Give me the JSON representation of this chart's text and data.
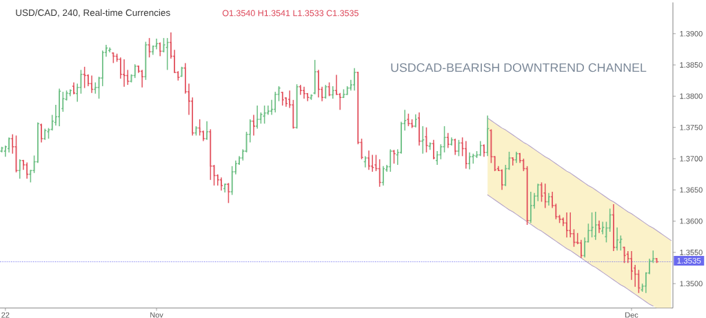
{
  "chart_data": {
    "type": "candlestick",
    "title": "USD/CAD, 240, Real-time Currencies",
    "subtitle": "O1.3540 H1.3541 L1.3533 C1.3535",
    "annotations": [
      "USDCAD-BEARISH DOWNTREND CHANNEL"
    ],
    "categories": [
      null,
      "22",
      null,
      null,
      null,
      null,
      null,
      null,
      null,
      null,
      null,
      null,
      null,
      null,
      null,
      null,
      null,
      null,
      null,
      null,
      null,
      null,
      null,
      null,
      null,
      null,
      null,
      null,
      null,
      null,
      null,
      null,
      null,
      null,
      null,
      null,
      null,
      null,
      null,
      null,
      null,
      null,
      null,
      "Nov",
      null,
      null,
      null,
      null,
      null,
      null,
      null,
      null,
      null,
      null,
      null,
      null,
      null,
      null,
      null,
      null,
      null,
      null,
      null,
      null,
      null,
      null,
      null,
      null,
      null,
      null,
      null,
      null,
      null,
      null,
      null,
      null,
      null,
      null,
      null,
      null,
      null,
      null,
      null,
      null,
      null,
      null,
      null,
      null,
      null,
      null,
      null,
      null,
      null,
      null,
      null,
      null,
      null,
      null,
      null,
      null,
      null,
      null,
      null,
      null,
      null,
      null,
      null,
      null,
      null,
      null,
      null,
      null,
      null,
      null,
      null,
      null,
      null,
      null,
      null,
      null,
      null,
      null,
      null,
      null,
      null,
      null,
      null,
      null,
      null,
      null,
      null,
      null,
      null,
      null,
      null,
      null,
      null,
      null,
      null,
      null,
      null,
      null,
      null,
      null,
      null,
      null,
      null,
      null,
      null,
      null,
      null,
      null,
      null,
      null,
      null,
      null,
      null,
      null,
      null,
      null,
      null,
      null,
      null,
      null,
      null,
      null,
      null,
      null,
      null,
      null,
      null,
      null,
      null,
      null,
      null,
      "Dec",
      null,
      null,
      null,
      null,
      null,
      null,
      null,
      null,
      null,
      null,
      null
    ],
    "ohlc": [
      [
        1.3712,
        1.3719,
        1.371,
        1.3717
      ],
      [
        1.3712,
        1.3721,
        1.3703,
        1.3719
      ],
      [
        1.3716,
        1.3734,
        1.371,
        1.3732
      ],
      [
        1.3732,
        1.3739,
        1.3708,
        1.3719
      ],
      [
        1.3719,
        1.3737,
        1.3678,
        1.3681
      ],
      [
        1.3681,
        1.3699,
        1.3668,
        1.3697
      ],
      [
        1.3697,
        1.3698,
        1.3682,
        1.369
      ],
      [
        1.369,
        1.3694,
        1.3668,
        1.3675
      ],
      [
        1.3675,
        1.3682,
        1.3662,
        1.3681
      ],
      [
        1.3681,
        1.3705,
        1.3677,
        1.3695
      ],
      [
        1.3695,
        1.3758,
        1.3693,
        1.3756
      ],
      [
        1.3754,
        1.3756,
        1.3726,
        1.3732
      ],
      [
        1.3732,
        1.3748,
        1.373,
        1.3745
      ],
      [
        1.3743,
        1.3749,
        1.3732,
        1.3746
      ],
      [
        1.3747,
        1.377,
        1.3745,
        1.376
      ],
      [
        1.3758,
        1.3786,
        1.3753,
        1.3767
      ],
      [
        1.3767,
        1.3812,
        1.3752,
        1.3808
      ],
      [
        1.378,
        1.3807,
        1.3775,
        1.3796
      ],
      [
        1.3795,
        1.3809,
        1.3793,
        1.3805
      ],
      [
        1.3804,
        1.3811,
        1.38,
        1.3809
      ],
      [
        1.3816,
        1.3822,
        1.3803,
        1.3805
      ],
      [
        1.3804,
        1.382,
        1.3791,
        1.3814
      ],
      [
        1.3814,
        1.3842,
        1.3804,
        1.3835
      ],
      [
        1.3835,
        1.3847,
        1.3813,
        1.3833
      ],
      [
        1.3833,
        1.3835,
        1.3816,
        1.382
      ],
      [
        1.382,
        1.3833,
        1.3805,
        1.3811
      ],
      [
        1.3811,
        1.3822,
        1.3804,
        1.3814
      ],
      [
        1.3814,
        1.3831,
        1.3796,
        1.3829
      ],
      [
        1.3829,
        1.3873,
        1.3816,
        1.387
      ],
      [
        1.387,
        1.3882,
        1.3863,
        1.3877
      ],
      [
        1.3873,
        1.3878,
        1.387,
        1.3875
      ],
      [
        1.3869,
        1.387,
        1.3853,
        1.3864
      ],
      [
        1.3864,
        1.3868,
        1.3855,
        1.3859
      ],
      [
        1.3859,
        1.3862,
        1.3828,
        1.3835
      ],
      [
        1.3835,
        1.3859,
        1.3815,
        1.3833
      ],
      [
        1.3833,
        1.3842,
        1.3818,
        1.3824
      ],
      [
        1.3824,
        1.3835,
        1.3822,
        1.3833
      ],
      [
        1.3833,
        1.3851,
        1.3829,
        1.3848
      ],
      [
        1.3848,
        1.3849,
        1.3837,
        1.384
      ],
      [
        1.384,
        1.3842,
        1.3814,
        1.3831
      ],
      [
        1.3831,
        1.3887,
        1.3826,
        1.3882
      ],
      [
        1.3882,
        1.3893,
        1.3862,
        1.3871
      ],
      [
        1.3871,
        1.3881,
        1.3866,
        1.388
      ],
      [
        1.388,
        1.3892,
        1.3875,
        1.3884
      ],
      [
        1.3884,
        1.3886,
        1.3864,
        1.3872
      ],
      [
        1.3872,
        1.3893,
        1.387,
        1.3882
      ],
      [
        1.3878,
        1.3893,
        1.3842,
        1.3886
      ],
      [
        1.3886,
        1.3902,
        1.386,
        1.3864
      ],
      [
        1.3864,
        1.3874,
        1.3837,
        1.3838
      ],
      [
        1.3838,
        1.384,
        1.3825,
        1.383
      ],
      [
        1.3832,
        1.3847,
        1.3831,
        1.3845
      ],
      [
        1.3845,
        1.3853,
        1.3804,
        1.3807
      ],
      [
        1.3807,
        1.382,
        1.377,
        1.3792
      ],
      [
        1.3792,
        1.3798,
        1.3737,
        1.3741
      ],
      [
        1.3741,
        1.3752,
        1.3737,
        1.3749
      ],
      [
        1.3749,
        1.3763,
        1.3737,
        1.3743
      ],
      [
        1.3743,
        1.3745,
        1.3728,
        1.3732
      ],
      [
        1.3732,
        1.376,
        1.373,
        1.3743
      ],
      [
        1.3743,
        1.3747,
        1.3666,
        1.3688
      ],
      [
        1.3688,
        1.369,
        1.3657,
        1.3673
      ],
      [
        1.3673,
        1.3675,
        1.3657,
        1.3666
      ],
      [
        1.3666,
        1.367,
        1.3649,
        1.3657
      ],
      [
        1.3652,
        1.366,
        1.3646,
        1.3659
      ],
      [
        1.3659,
        1.3661,
        1.3629,
        1.3647
      ],
      [
        1.3647,
        1.3688,
        1.3642,
        1.3679
      ],
      [
        1.3679,
        1.3697,
        1.3675,
        1.3692
      ],
      [
        1.3692,
        1.3704,
        1.369,
        1.3701
      ],
      [
        1.3701,
        1.3715,
        1.3697,
        1.3712
      ],
      [
        1.3712,
        1.3743,
        1.371,
        1.3739
      ],
      [
        1.3739,
        1.3763,
        1.3726,
        1.376
      ],
      [
        1.376,
        1.377,
        1.3737,
        1.3752
      ],
      [
        1.3752,
        1.3785,
        1.3748,
        1.3763
      ],
      [
        1.3763,
        1.3774,
        1.3756,
        1.3771
      ],
      [
        1.3768,
        1.3785,
        1.3756,
        1.3773
      ],
      [
        1.3773,
        1.3785,
        1.377,
        1.3776
      ],
      [
        1.3776,
        1.3794,
        1.377,
        1.3779
      ],
      [
        1.3779,
        1.3807,
        1.3774,
        1.3803
      ],
      [
        1.3803,
        1.3816,
        1.3792,
        1.3813
      ],
      [
        1.3806,
        1.3807,
        1.3785,
        1.3794
      ],
      [
        1.3797,
        1.3798,
        1.3783,
        1.3788
      ],
      [
        1.3795,
        1.3809,
        1.3781,
        1.3786
      ],
      [
        1.3786,
        1.3794,
        1.3748,
        1.375
      ],
      [
        1.375,
        1.3819,
        1.3748,
        1.3815
      ],
      [
        1.3815,
        1.3818,
        1.3802,
        1.3809
      ],
      [
        1.3809,
        1.3815,
        1.3796,
        1.3804
      ],
      [
        1.3804,
        1.3805,
        1.3792,
        1.3798
      ],
      [
        1.3797,
        1.3803,
        1.3794,
        1.3801
      ],
      [
        1.3805,
        1.3858,
        1.3803,
        1.3839
      ],
      [
        1.3839,
        1.3842,
        1.3798,
        1.3811
      ],
      [
        1.3811,
        1.3815,
        1.3792,
        1.3798
      ],
      [
        1.3798,
        1.3818,
        1.3796,
        1.3815
      ],
      [
        1.3815,
        1.3822,
        1.38,
        1.3802
      ],
      [
        1.3802,
        1.3816,
        1.3796,
        1.3809
      ],
      [
        1.3809,
        1.3834,
        1.3802,
        1.3803
      ],
      [
        1.3803,
        1.3805,
        1.3778,
        1.3798
      ],
      [
        1.3798,
        1.3811,
        1.3797,
        1.3803
      ],
      [
        1.3803,
        1.3816,
        1.3802,
        1.3813
      ],
      [
        1.3813,
        1.3826,
        1.3809,
        1.3818
      ],
      [
        1.3818,
        1.3845,
        1.3809,
        1.3838
      ],
      [
        1.3838,
        1.3839,
        1.3723,
        1.3726
      ],
      [
        1.3726,
        1.3732,
        1.3699,
        1.3702
      ],
      [
        1.3695,
        1.3704,
        1.3686,
        1.3701
      ],
      [
        1.3701,
        1.3713,
        1.3682,
        1.3688
      ],
      [
        1.3688,
        1.3706,
        1.3679,
        1.3686
      ],
      [
        1.369,
        1.3706,
        1.368,
        1.3684
      ],
      [
        1.3684,
        1.3699,
        1.3655,
        1.3662
      ],
      [
        1.3662,
        1.3688,
        1.3657,
        1.3684
      ],
      [
        1.3682,
        1.369,
        1.3679,
        1.3687
      ],
      [
        1.3687,
        1.3715,
        1.3679,
        1.3712
      ],
      [
        1.3712,
        1.3714,
        1.3692,
        1.3708
      ],
      [
        1.3706,
        1.3715,
        1.369,
        1.371
      ],
      [
        1.371,
        1.3759,
        1.3708,
        1.3756
      ],
      [
        1.3756,
        1.3778,
        1.3745,
        1.3761
      ],
      [
        1.3763,
        1.3772,
        1.3752,
        1.3756
      ],
      [
        1.3756,
        1.3763,
        1.3749,
        1.3752
      ],
      [
        1.3752,
        1.3771,
        1.375,
        1.3763
      ],
      [
        1.3765,
        1.3774,
        1.3721,
        1.3728
      ],
      [
        1.3728,
        1.3752,
        1.3708,
        1.373
      ],
      [
        1.3735,
        1.375,
        1.371,
        1.3721
      ],
      [
        1.372,
        1.3726,
        1.3714,
        1.3724
      ],
      [
        1.3724,
        1.373,
        1.3699,
        1.3701
      ],
      [
        1.3697,
        1.3712,
        1.369,
        1.3706
      ],
      [
        1.3706,
        1.3723,
        1.3699,
        1.3719
      ],
      [
        1.3719,
        1.3752,
        1.371,
        1.3734
      ],
      [
        1.3734,
        1.3741,
        1.3717,
        1.3723
      ],
      [
        1.3723,
        1.3734,
        1.3721,
        1.373
      ],
      [
        1.373,
        1.3732,
        1.3706,
        1.3712
      ],
      [
        1.3712,
        1.373,
        1.3704,
        1.3725
      ],
      [
        1.3725,
        1.3734,
        1.3704,
        1.3716
      ],
      [
        1.3716,
        1.3728,
        1.3684,
        1.3692
      ],
      [
        1.3692,
        1.371,
        1.3683,
        1.3703
      ],
      [
        1.3703,
        1.3708,
        1.3692,
        1.3705
      ],
      [
        1.3704,
        1.3712,
        1.3701,
        1.3706
      ],
      [
        1.3706,
        1.3728,
        1.3704,
        1.3721
      ],
      [
        1.3721,
        1.3723,
        1.3703,
        1.371
      ],
      [
        1.371,
        1.3769,
        1.3704,
        1.3748
      ],
      [
        1.3745,
        1.3747,
        1.3693,
        1.3703
      ],
      [
        1.3703,
        1.3704,
        1.368,
        1.3682
      ],
      [
        1.3684,
        1.3688,
        1.368,
        1.3681
      ],
      [
        1.3681,
        1.3683,
        1.365,
        1.3658
      ],
      [
        1.3658,
        1.369,
        1.3656,
        1.3684
      ],
      [
        1.3684,
        1.3711,
        1.3682,
        1.3701
      ],
      [
        1.3701,
        1.3702,
        1.3689,
        1.3698
      ],
      [
        1.3698,
        1.3711,
        1.3693,
        1.3708
      ],
      [
        1.3708,
        1.3709,
        1.3693,
        1.3697
      ],
      [
        1.3697,
        1.37,
        1.368,
        1.3684
      ],
      [
        1.3684,
        1.3688,
        1.3594,
        1.3601
      ],
      [
        1.3601,
        1.3647,
        1.3597,
        1.3625
      ],
      [
        1.3625,
        1.3645,
        1.362,
        1.364
      ],
      [
        1.364,
        1.366,
        1.3632,
        1.3658
      ],
      [
        1.3658,
        1.3662,
        1.3631,
        1.364
      ],
      [
        1.3645,
        1.366,
        1.3621,
        1.3631
      ],
      [
        1.3631,
        1.3645,
        1.3625,
        1.3639
      ],
      [
        1.3639,
        1.3647,
        1.3621,
        1.3625
      ],
      [
        1.3625,
        1.3628,
        1.3603,
        1.3607
      ],
      [
        1.3607,
        1.361,
        1.3597,
        1.3603
      ],
      [
        1.3603,
        1.3606,
        1.3592,
        1.3597
      ],
      [
        1.3597,
        1.3614,
        1.3574,
        1.3585
      ],
      [
        1.3585,
        1.3614,
        1.3574,
        1.358
      ],
      [
        1.358,
        1.3587,
        1.3559,
        1.3566
      ],
      [
        1.3566,
        1.3581,
        1.3563,
        1.3565
      ],
      [
        1.3565,
        1.357,
        1.3541,
        1.3545
      ],
      [
        1.3545,
        1.3574,
        1.3542,
        1.3567
      ],
      [
        1.3567,
        1.3596,
        1.3566,
        1.3585
      ],
      [
        1.3585,
        1.3614,
        1.3574,
        1.359
      ],
      [
        1.3576,
        1.3615,
        1.357,
        1.3594
      ],
      [
        1.3594,
        1.3601,
        1.3581,
        1.3588
      ],
      [
        1.3584,
        1.3599,
        1.3579,
        1.359
      ],
      [
        1.3575,
        1.3599,
        1.3566,
        1.3589
      ],
      [
        1.3589,
        1.362,
        1.3583,
        1.361
      ],
      [
        1.361,
        1.3627,
        1.3552,
        1.3558
      ],
      [
        1.3558,
        1.359,
        1.3553,
        1.357
      ],
      [
        1.3566,
        1.3577,
        1.3553,
        1.3571
      ],
      [
        1.3558,
        1.3559,
        1.3533,
        1.3545
      ],
      [
        1.3547,
        1.3552,
        1.3533,
        1.354
      ],
      [
        1.354,
        1.3552,
        1.3506,
        1.352
      ],
      [
        1.3525,
        1.353,
        1.3495,
        1.3515
      ],
      [
        1.3515,
        1.3522,
        1.3485,
        1.3493
      ],
      [
        1.349,
        1.35,
        1.3487,
        1.3496
      ],
      [
        1.3496,
        1.3518,
        1.3485,
        1.3517
      ],
      [
        1.3517,
        1.354,
        1.3515,
        1.3536
      ],
      [
        1.3536,
        1.3553,
        1.3533,
        1.354
      ],
      [
        1.354,
        1.3541,
        1.3533,
        1.3535
      ],
      null,
      null,
      null,
      null
    ],
    "colors": [
      "#6dbf84",
      "#6dbf84",
      "#6dbf84",
      "#e2535f",
      "#e2535f",
      "#6dbf84",
      "#e2535f",
      "#e2535f",
      "#6dbf84",
      "#6dbf84",
      "#6dbf84",
      "#e2535f",
      "#6dbf84",
      "#6dbf84",
      "#6dbf84",
      "#6dbf84",
      "#6dbf84",
      "#6dbf84",
      "#6dbf84",
      "#6dbf84",
      "#e2535f",
      "#6dbf84",
      "#6dbf84",
      "#e2535f",
      "#e2535f",
      "#e2535f",
      "#6dbf84",
      "#6dbf84",
      "#6dbf84",
      "#6dbf84",
      "#6dbf84",
      "#e2535f",
      "#e2535f",
      "#e2535f",
      "#e2535f",
      "#e2535f",
      "#6dbf84",
      "#6dbf84",
      "#e2535f",
      "#e2535f",
      "#6dbf84",
      "#e2535f",
      "#6dbf84",
      "#6dbf84",
      "#e2535f",
      "#6dbf84",
      "#6dbf84",
      "#e2535f",
      "#e2535f",
      "#e2535f",
      "#6dbf84",
      "#e2535f",
      "#e2535f",
      "#e2535f",
      "#6dbf84",
      "#e2535f",
      "#e2535f",
      "#6dbf84",
      "#e2535f",
      "#e2535f",
      "#e2535f",
      "#e2535f",
      "#6dbf84",
      "#e2535f",
      "#6dbf84",
      "#6dbf84",
      "#6dbf84",
      "#6dbf84",
      "#6dbf84",
      "#6dbf84",
      "#e2535f",
      "#6dbf84",
      "#6dbf84",
      "#6dbf84",
      "#6dbf84",
      "#6dbf84",
      "#6dbf84",
      "#6dbf84",
      "#e2535f",
      "#e2535f",
      "#e2535f",
      "#e2535f",
      "#6dbf84",
      "#e2535f",
      "#e2535f",
      "#e2535f",
      "#6dbf84",
      "#6dbf84",
      "#e2535f",
      "#e2535f",
      "#6dbf84",
      "#e2535f",
      "#6dbf84",
      "#e2535f",
      "#e2535f",
      "#6dbf84",
      "#6dbf84",
      "#6dbf84",
      "#6dbf84",
      "#e2535f",
      "#e2535f",
      "#6dbf84",
      "#e2535f",
      "#e2535f",
      "#e2535f",
      "#e2535f",
      "#6dbf84",
      "#6dbf84",
      "#6dbf84",
      "#e2535f",
      "#6dbf84",
      "#6dbf84",
      "#6dbf84",
      "#e2535f",
      "#e2535f",
      "#6dbf84",
      "#e2535f",
      "#6dbf84",
      "#e2535f",
      "#6dbf84",
      "#e2535f",
      "#6dbf84",
      "#6dbf84",
      "#6dbf84",
      "#e2535f",
      "#6dbf84",
      "#e2535f",
      "#6dbf84",
      "#e2535f",
      "#e2535f",
      "#6dbf84",
      "#6dbf84",
      "#6dbf84",
      "#6dbf84",
      "#e2535f",
      "#6dbf84",
      "#e2535f",
      "#e2535f",
      "#e2535f",
      "#e2535f",
      "#6dbf84",
      "#6dbf84",
      "#e2535f",
      "#6dbf84",
      "#e2535f",
      "#e2535f",
      "#e2535f",
      "#6dbf84",
      "#6dbf84",
      "#6dbf84",
      "#e2535f",
      "#e2535f",
      "#6dbf84",
      "#e2535f",
      "#e2535f",
      "#e2535f",
      "#e2535f",
      "#e2535f",
      "#e2535f",
      "#e2535f",
      "#e2535f",
      "#e2535f",
      "#6dbf84",
      "#6dbf84",
      "#6dbf84",
      "#6dbf84",
      "#e2535f",
      "#6dbf84",
      "#6dbf84",
      "#6dbf84",
      "#e2535f",
      "#6dbf84",
      "#6dbf84",
      "#e2535f",
      "#e2535f",
      "#e2535f",
      "#e2535f",
      "#e2535f",
      "#6dbf84",
      "#6dbf84",
      "#6dbf84",
      "#6dbf84",
      "#e2535f",
      null,
      null,
      null,
      null
    ],
    "series": [
      {
        "type": "line",
        "color": "#b3a2c8",
        "values": [
          null,
          null,
          null,
          null,
          null,
          null,
          null,
          null,
          null,
          null,
          null,
          null,
          null,
          null,
          null,
          null,
          null,
          null,
          null,
          null,
          null,
          null,
          null,
          null,
          null,
          null,
          null,
          null,
          null,
          null,
          null,
          null,
          null,
          null,
          null,
          null,
          null,
          null,
          null,
          null,
          null,
          null,
          null,
          null,
          null,
          null,
          null,
          null,
          null,
          null,
          null,
          null,
          null,
          null,
          null,
          null,
          null,
          null,
          null,
          null,
          null,
          null,
          null,
          null,
          null,
          null,
          null,
          null,
          null,
          null,
          null,
          null,
          null,
          null,
          null,
          null,
          null,
          null,
          null,
          null,
          null,
          null,
          null,
          null,
          null,
          null,
          null,
          null,
          null,
          null,
          null,
          null,
          null,
          null,
          null,
          null,
          null,
          null,
          null,
          null,
          null,
          null,
          null,
          null,
          null,
          null,
          null,
          null,
          null,
          null,
          null,
          null,
          null,
          null,
          null,
          null,
          null,
          null,
          null,
          null,
          null,
          null,
          null,
          null,
          null,
          null,
          null,
          null,
          null,
          null,
          null,
          null,
          null,
          null,
          null,
          1.3765,
          1.3761,
          1.3757,
          1.3753,
          1.3749,
          1.3746,
          1.3742,
          1.3738,
          1.3734,
          1.373,
          1.3726,
          1.3723,
          1.3719,
          1.3715,
          1.3711,
          1.3707,
          1.3703,
          1.37,
          1.3696,
          1.3692,
          1.3688,
          1.3684,
          1.368,
          1.3677,
          1.3673,
          1.3669,
          1.3665,
          1.3661,
          1.3657,
          1.3654,
          1.365,
          1.3646,
          1.3642,
          1.3638,
          1.3634,
          1.3631,
          1.3627,
          1.3623,
          1.3619,
          1.3615,
          1.3612,
          1.3608,
          1.3604,
          1.36,
          1.3596,
          1.3592,
          1.3589,
          1.3585,
          1.3581,
          1.3577,
          1.3573,
          1.3569
        ],
        "upper": [
          null,
          null,
          null,
          null,
          null,
          null,
          null,
          null,
          null,
          null,
          null,
          null,
          null,
          null,
          null,
          null,
          null,
          null,
          null,
          null,
          null,
          null,
          null,
          null,
          null,
          null,
          null,
          null,
          null,
          null,
          null,
          null,
          null,
          null,
          null,
          null,
          null,
          null,
          null,
          null,
          null,
          null,
          null,
          null,
          null,
          null,
          null,
          null,
          null,
          null,
          null,
          null,
          null,
          null,
          null,
          null,
          null,
          null,
          null,
          null,
          null,
          null,
          null,
          null,
          null,
          null,
          null,
          null,
          null,
          null,
          null,
          null,
          null,
          null,
          null,
          null,
          null,
          null,
          null,
          null,
          null,
          null,
          null,
          null,
          null,
          null,
          null,
          null,
          null,
          null,
          null,
          null,
          null,
          null,
          null,
          null,
          null,
          null,
          null,
          null,
          null,
          null,
          null,
          null,
          null,
          null,
          null,
          null,
          null,
          null,
          null,
          null,
          null,
          null,
          null,
          null,
          null,
          null,
          null,
          null,
          null,
          null,
          null,
          null,
          null,
          null,
          null,
          null,
          null,
          null,
          null,
          null,
          null,
          null,
          null,
          1.3765,
          1.3761,
          1.3757,
          1.3753,
          1.3749,
          1.3746,
          1.3742,
          1.3738,
          1.3734,
          1.373,
          1.3726,
          1.3723,
          1.3719,
          1.3715,
          1.3711,
          1.3707,
          1.3703,
          1.37,
          1.3696,
          1.3692,
          1.3688,
          1.3684,
          1.368,
          1.3677,
          1.3673,
          1.3669,
          1.3665,
          1.3661,
          1.3657,
          1.3654,
          1.365,
          1.3646,
          1.3642,
          1.3638,
          1.3634,
          1.3631,
          1.3627,
          1.3623,
          1.3619,
          1.3615,
          1.3612,
          1.3608,
          1.3604,
          1.36,
          1.3596,
          1.3592,
          1.3589,
          1.3585,
          1.3581,
          1.3577,
          1.3573,
          1.3569
        ],
        "lower": [
          null,
          null,
          null,
          null,
          null,
          null,
          null,
          null,
          null,
          null,
          null,
          null,
          null,
          null,
          null,
          null,
          null,
          null,
          null,
          null,
          null,
          null,
          null,
          null,
          null,
          null,
          null,
          null,
          null,
          null,
          null,
          null,
          null,
          null,
          null,
          null,
          null,
          null,
          null,
          null,
          null,
          null,
          null,
          null,
          null,
          null,
          null,
          null,
          null,
          null,
          null,
          null,
          null,
          null,
          null,
          null,
          null,
          null,
          null,
          null,
          null,
          null,
          null,
          null,
          null,
          null,
          null,
          null,
          null,
          null,
          null,
          null,
          null,
          null,
          null,
          null,
          null,
          null,
          null,
          null,
          null,
          null,
          null,
          null,
          null,
          null,
          null,
          null,
          null,
          null,
          null,
          null,
          null,
          null,
          null,
          null,
          null,
          null,
          null,
          null,
          null,
          null,
          null,
          null,
          null,
          null,
          null,
          null,
          null,
          null,
          null,
          null,
          null,
          null,
          null,
          null,
          null,
          null,
          null,
          null,
          null,
          null,
          null,
          null,
          null,
          null,
          null,
          null,
          null,
          null,
          null,
          null,
          null,
          null,
          null,
          1.3642,
          1.3638,
          1.3634,
          1.363,
          1.3626,
          1.3622,
          1.3618,
          1.3615,
          1.3611,
          1.3607,
          1.3603,
          1.3599,
          1.3595,
          1.3591,
          1.3587,
          1.3584,
          1.358,
          1.3576,
          1.3572,
          1.3568,
          1.3564,
          1.356,
          1.3556,
          1.3553,
          1.3549,
          1.3545,
          1.3541,
          1.3537,
          1.3533,
          1.3529,
          1.3526,
          1.3522,
          1.3518,
          1.3514,
          1.351,
          1.3506,
          1.3502,
          1.3498,
          1.3495,
          1.3491,
          1.3487,
          1.3483,
          1.3479,
          1.3475,
          1.3471,
          1.3467,
          1.3464,
          1.3461,
          1.3461,
          1.3461,
          1.3461,
          1.3461
        ]
      },
      {
        "type": "line",
        "color": "#b3a2c8",
        "values": [
          null,
          null,
          null,
          null,
          null,
          null,
          null,
          null,
          null,
          null,
          null,
          null,
          null,
          null,
          null,
          null,
          null,
          null,
          null,
          null,
          null,
          null,
          null,
          null,
          null,
          null,
          null,
          null,
          null,
          null,
          null,
          null,
          null,
          null,
          null,
          null,
          null,
          null,
          null,
          null,
          null,
          null,
          null,
          null,
          null,
          null,
          null,
          null,
          null,
          null,
          null,
          null,
          null,
          null,
          null,
          null,
          null,
          null,
          null,
          null,
          null,
          null,
          null,
          null,
          null,
          null,
          null,
          null,
          null,
          null,
          null,
          null,
          null,
          null,
          null,
          null,
          null,
          null,
          null,
          null,
          null,
          null,
          null,
          null,
          null,
          null,
          null,
          null,
          null,
          null,
          null,
          null,
          null,
          null,
          null,
          null,
          null,
          null,
          null,
          null,
          null,
          null,
          null,
          null,
          null,
          null,
          null,
          null,
          null,
          null,
          null,
          null,
          null,
          null,
          null,
          null,
          null,
          null,
          null,
          null,
          null,
          null,
          null,
          null,
          null,
          null,
          null,
          null,
          null,
          null,
          null,
          null,
          null,
          null,
          null,
          1.3642,
          1.3638,
          1.3634,
          1.363,
          1.3626,
          1.3622,
          1.3618,
          1.3615,
          1.3611,
          1.3607,
          1.3603,
          1.3599,
          1.3595,
          1.3591,
          1.3587,
          1.3584,
          1.358,
          1.3576,
          1.3572,
          1.3568,
          1.3564,
          1.356,
          1.3556,
          1.3553,
          1.3549,
          1.3545,
          1.3541,
          1.3537,
          1.3533,
          1.3529,
          1.3526,
          1.3522,
          1.3518,
          1.3514,
          1.351,
          1.3506,
          1.3502,
          1.3498,
          1.3495,
          1.3491,
          1.3487,
          1.3483,
          1.3479,
          1.3475,
          1.3471,
          1.3467,
          1.3464,
          null,
          null,
          null,
          null,
          null
        ]
      }
    ],
    "ylim": [
      1.3461,
      1.395
    ],
    "yticks": [
      {
        "value": 1.35,
        "label": "1.3500"
      },
      {
        "value": 1.355,
        "label": "1.3550"
      },
      {
        "value": 1.36,
        "label": "1.3600"
      },
      {
        "value": 1.365,
        "label": "1.3650"
      },
      {
        "value": 1.37,
        "label": "1.3700"
      },
      {
        "value": 1.375,
        "label": "1.3750"
      },
      {
        "value": 1.38,
        "label": "1.3800"
      },
      {
        "value": 1.385,
        "label": "1.3850"
      },
      {
        "value": 1.39,
        "label": "1.3900"
      }
    ],
    "ref_lines": [
      {
        "axis": "y",
        "value": 1.3535,
        "label": "1.3535",
        "color": "#6a6aee",
        "line_style": "dotted"
      }
    ]
  }
}
